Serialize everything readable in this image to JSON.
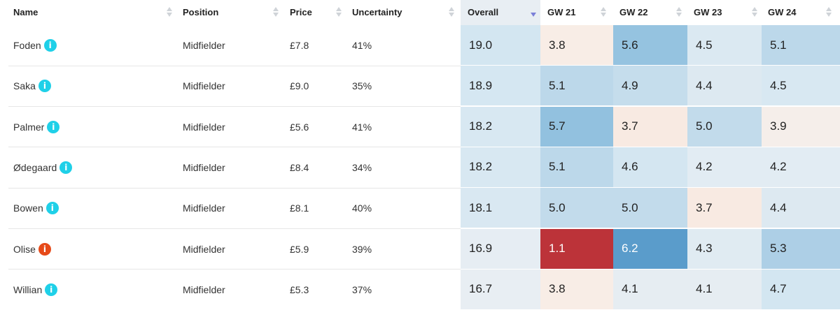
{
  "columns": {
    "name": "Name",
    "position": "Position",
    "price": "Price",
    "uncertainty": "Uncertainty",
    "overall": "Overall",
    "gw21": "GW 21",
    "gw22": "GW 22",
    "gw23": "GW 23",
    "gw24": "GW 24"
  },
  "sort": {
    "column": "Overall",
    "direction": "descending"
  },
  "colors": {
    "info_default": "#1fd0e8",
    "info_alert": "#e64a19",
    "sort_active": "#7b80d8",
    "sort_inactive": "#cfd3d8"
  },
  "rows": [
    {
      "name": "Foden",
      "info_icon": "info-icon",
      "info_status": "default",
      "position": "Midfielder",
      "price": "£7.8",
      "uncertainty": "41%",
      "overall": "19.0",
      "gw": [
        "3.8",
        "5.6",
        "4.5",
        "5.1"
      ],
      "colors": [
        "#d3e6f1",
        "#f8ede6",
        "#95c3e0",
        "#dbe9f2",
        "#bcd8ea"
      ]
    },
    {
      "name": "Saka",
      "info_icon": "info-icon",
      "info_status": "default",
      "position": "Midfielder",
      "price": "£9.0",
      "uncertainty": "35%",
      "overall": "18.9",
      "gw": [
        "5.1",
        "4.9",
        "4.4",
        "4.5"
      ],
      "colors": [
        "#d5e7f2",
        "#bcd8ea",
        "#c5ddec",
        "#dde9f1",
        "#d8e8f2"
      ]
    },
    {
      "name": "Palmer",
      "info_icon": "info-icon",
      "info_status": "default",
      "position": "Midfielder",
      "price": "£5.6",
      "uncertainty": "41%",
      "overall": "18.2",
      "gw": [
        "5.7",
        "3.7",
        "5.0",
        "3.9"
      ],
      "colors": [
        "#d8e8f2",
        "#92c1df",
        "#f8eae2",
        "#c2dbeb",
        "#f5eeea"
      ]
    },
    {
      "name": "Ødegaard",
      "info_icon": "info-icon",
      "info_status": "default",
      "position": "Midfielder",
      "price": "£8.4",
      "uncertainty": "34%",
      "overall": "18.2",
      "gw": [
        "5.1",
        "4.6",
        "4.2",
        "4.2"
      ],
      "colors": [
        "#d8e8f2",
        "#bcd8ea",
        "#d4e6f1",
        "#e2ecf3",
        "#e2ecf3"
      ]
    },
    {
      "name": "Bowen",
      "info_icon": "info-icon",
      "info_status": "default",
      "position": "Midfielder",
      "price": "£8.1",
      "uncertainty": "40%",
      "overall": "18.1",
      "gw": [
        "5.0",
        "5.0",
        "3.7",
        "4.4"
      ],
      "colors": [
        "#d9e8f2",
        "#c2dbeb",
        "#c2dbeb",
        "#f8eae2",
        "#dde9f1"
      ]
    },
    {
      "name": "Olise",
      "info_icon": "info-icon",
      "info_status": "alert",
      "position": "Midfielder",
      "price": "£5.9",
      "uncertainty": "39%",
      "overall": "16.9",
      "gw": [
        "1.1",
        "6.2",
        "4.3",
        "5.3"
      ],
      "colors": [
        "#e6edf3",
        "#bc3339",
        "#5a9ccb",
        "#e0ebf2",
        "#adcfe6"
      ]
    },
    {
      "name": "Willian",
      "info_icon": "info-icon",
      "info_status": "default",
      "position": "Midfielder",
      "price": "£5.3",
      "uncertainty": "37%",
      "overall": "16.7",
      "gw": [
        "3.8",
        "4.1",
        "4.1",
        "4.7"
      ],
      "colors": [
        "#e8eef3",
        "#f8ede6",
        "#e6edf2",
        "#e6edf2",
        "#d3e6f1"
      ]
    }
  ]
}
